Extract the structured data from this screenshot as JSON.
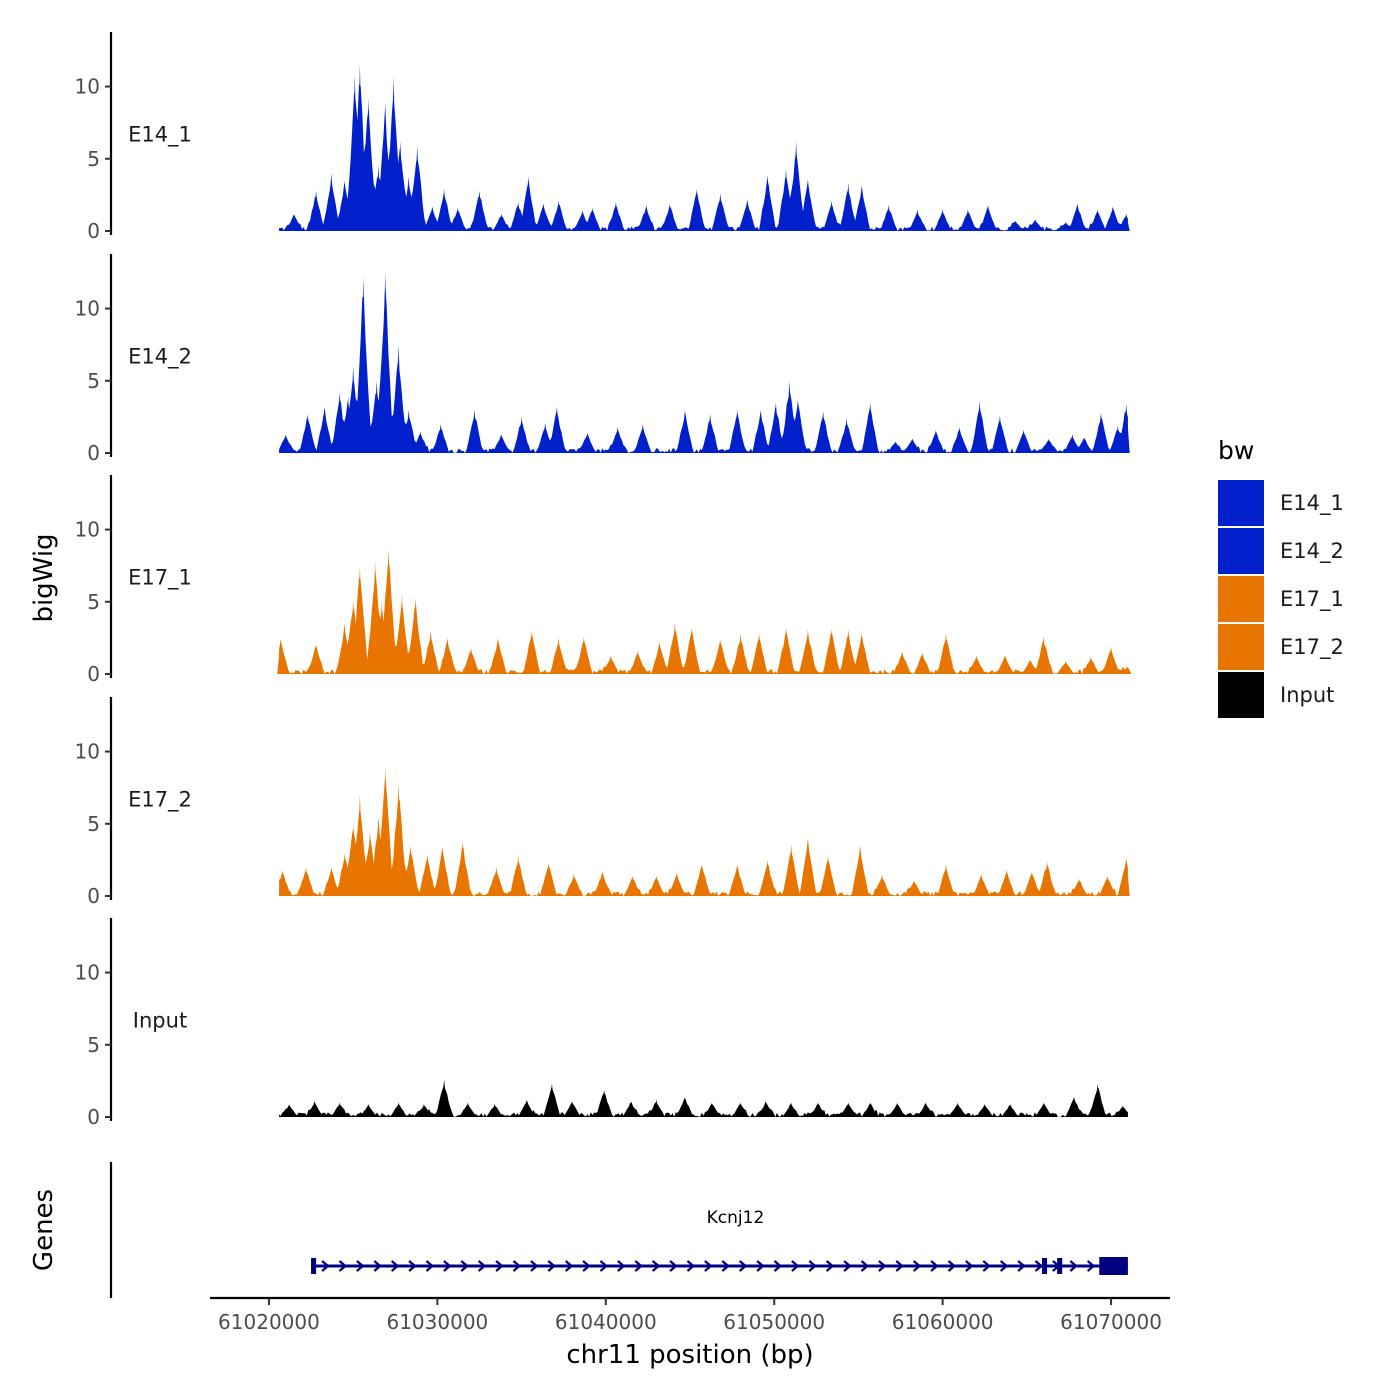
{
  "chart_data": {
    "type": "area",
    "title": "",
    "ylabel": "bigWig",
    "gene_panel_label": "Genes",
    "xlabel": "chr11 position (bp)",
    "xlim": [
      61016500,
      61073500
    ],
    "x_ticks": [
      61020000,
      61030000,
      61040000,
      61050000,
      61060000,
      61070000
    ],
    "x_tick_labels": [
      "61020000",
      "61030000",
      "61040000",
      "61050000",
      "61060000",
      "61070000"
    ],
    "ylim": [
      0,
      13.5
    ],
    "y_ticks": [
      0,
      5,
      10
    ],
    "y_tick_labels": [
      "0",
      "5",
      "10"
    ],
    "legend": {
      "title": "bw",
      "position": "right",
      "entries": [
        {
          "label": "E14_1",
          "color": "#0020CC"
        },
        {
          "label": "E14_2",
          "color": "#0020CC"
        },
        {
          "label": "E17_1",
          "color": "#E87500"
        },
        {
          "label": "E17_2",
          "color": "#E87500"
        },
        {
          "label": "Input",
          "color": "#000000"
        }
      ]
    },
    "series": [
      {
        "name": "E14_1",
        "color": "#0020CC",
        "x_start": 61020600,
        "x_end": 61071000,
        "peaks": [
          {
            "x": 61021500,
            "y": 1.2
          },
          {
            "x": 61022800,
            "y": 2.8
          },
          {
            "x": 61023700,
            "y": 4.0
          },
          {
            "x": 61024500,
            "y": 3.5
          },
          {
            "x": 61025100,
            "y": 10.8
          },
          {
            "x": 61025400,
            "y": 11.5
          },
          {
            "x": 61025900,
            "y": 9.2
          },
          {
            "x": 61026500,
            "y": 4.5
          },
          {
            "x": 61026900,
            "y": 8.8
          },
          {
            "x": 61027400,
            "y": 10.7
          },
          {
            "x": 61027800,
            "y": 6.2
          },
          {
            "x": 61028300,
            "y": 3.8
          },
          {
            "x": 61028800,
            "y": 5.9
          },
          {
            "x": 61029700,
            "y": 1.7
          },
          {
            "x": 61030400,
            "y": 2.9
          },
          {
            "x": 61031200,
            "y": 1.6
          },
          {
            "x": 61032500,
            "y": 2.8
          },
          {
            "x": 61033800,
            "y": 1.2
          },
          {
            "x": 61034800,
            "y": 2.0
          },
          {
            "x": 61035400,
            "y": 3.8
          },
          {
            "x": 61036300,
            "y": 1.9
          },
          {
            "x": 61037200,
            "y": 2.1
          },
          {
            "x": 61038600,
            "y": 1.4
          },
          {
            "x": 61039200,
            "y": 1.6
          },
          {
            "x": 61040600,
            "y": 2.0
          },
          {
            "x": 61042400,
            "y": 1.8
          },
          {
            "x": 61043800,
            "y": 1.9
          },
          {
            "x": 61045400,
            "y": 2.9
          },
          {
            "x": 61046800,
            "y": 2.6
          },
          {
            "x": 61048400,
            "y": 2.2
          },
          {
            "x": 61049600,
            "y": 3.9
          },
          {
            "x": 61050700,
            "y": 4.3
          },
          {
            "x": 61051300,
            "y": 6.2
          },
          {
            "x": 61052000,
            "y": 3.6
          },
          {
            "x": 61053400,
            "y": 2.1
          },
          {
            "x": 61054400,
            "y": 3.3
          },
          {
            "x": 61055200,
            "y": 3.2
          },
          {
            "x": 61056800,
            "y": 1.8
          },
          {
            "x": 61058500,
            "y": 1.5
          },
          {
            "x": 61060000,
            "y": 1.5
          },
          {
            "x": 61061500,
            "y": 1.5
          },
          {
            "x": 61062700,
            "y": 1.8
          },
          {
            "x": 61064300,
            "y": 0.7
          },
          {
            "x": 61065500,
            "y": 0.8
          },
          {
            "x": 61067300,
            "y": 0.6
          },
          {
            "x": 61068000,
            "y": 1.9
          },
          {
            "x": 61069200,
            "y": 1.5
          },
          {
            "x": 61070100,
            "y": 1.7
          },
          {
            "x": 61070900,
            "y": 1.2
          }
        ]
      },
      {
        "name": "E14_2",
        "color": "#0020CC",
        "x_start": 61020600,
        "x_end": 61071000,
        "peaks": [
          {
            "x": 61021000,
            "y": 1.3
          },
          {
            "x": 61022300,
            "y": 2.7
          },
          {
            "x": 61023300,
            "y": 3.2
          },
          {
            "x": 61024200,
            "y": 4.2
          },
          {
            "x": 61024700,
            "y": 3.9
          },
          {
            "x": 61025000,
            "y": 6.0
          },
          {
            "x": 61025600,
            "y": 12.2
          },
          {
            "x": 61026400,
            "y": 5.0
          },
          {
            "x": 61026900,
            "y": 12.5
          },
          {
            "x": 61027700,
            "y": 7.5
          },
          {
            "x": 61028300,
            "y": 3.0
          },
          {
            "x": 61029000,
            "y": 1.5
          },
          {
            "x": 61030200,
            "y": 2.0
          },
          {
            "x": 61032200,
            "y": 3.0
          },
          {
            "x": 61033800,
            "y": 1.3
          },
          {
            "x": 61035000,
            "y": 2.5
          },
          {
            "x": 61036400,
            "y": 2.1
          },
          {
            "x": 61037100,
            "y": 3.2
          },
          {
            "x": 61038900,
            "y": 1.4
          },
          {
            "x": 61040700,
            "y": 1.8
          },
          {
            "x": 61042200,
            "y": 2.0
          },
          {
            "x": 61044700,
            "y": 3.0
          },
          {
            "x": 61046200,
            "y": 2.7
          },
          {
            "x": 61047800,
            "y": 3.0
          },
          {
            "x": 61049200,
            "y": 3.0
          },
          {
            "x": 61050100,
            "y": 3.5
          },
          {
            "x": 61050900,
            "y": 5.0
          },
          {
            "x": 61051400,
            "y": 3.7
          },
          {
            "x": 61052900,
            "y": 2.9
          },
          {
            "x": 61054300,
            "y": 2.4
          },
          {
            "x": 61055700,
            "y": 3.5
          },
          {
            "x": 61057200,
            "y": 0.8
          },
          {
            "x": 61058200,
            "y": 1.0
          },
          {
            "x": 61059600,
            "y": 1.6
          },
          {
            "x": 61061000,
            "y": 1.8
          },
          {
            "x": 61062200,
            "y": 3.6
          },
          {
            "x": 61063400,
            "y": 2.6
          },
          {
            "x": 61064800,
            "y": 1.6
          },
          {
            "x": 61066300,
            "y": 1.0
          },
          {
            "x": 61067700,
            "y": 1.3
          },
          {
            "x": 61068400,
            "y": 1.1
          },
          {
            "x": 61069400,
            "y": 2.8
          },
          {
            "x": 61070400,
            "y": 1.9
          },
          {
            "x": 61070900,
            "y": 3.4
          }
        ]
      },
      {
        "name": "E17_1",
        "color": "#E87500",
        "x_start": 61020600,
        "x_end": 61071000,
        "peaks": [
          {
            "x": 61020700,
            "y": 2.4
          },
          {
            "x": 61022800,
            "y": 2.1
          },
          {
            "x": 61024500,
            "y": 3.5
          },
          {
            "x": 61025000,
            "y": 5.1
          },
          {
            "x": 61025400,
            "y": 7.5
          },
          {
            "x": 61026300,
            "y": 7.8
          },
          {
            "x": 61026700,
            "y": 5.0
          },
          {
            "x": 61027100,
            "y": 8.7
          },
          {
            "x": 61027900,
            "y": 5.5
          },
          {
            "x": 61028700,
            "y": 5.3
          },
          {
            "x": 61029600,
            "y": 3.0
          },
          {
            "x": 61030600,
            "y": 2.5
          },
          {
            "x": 61032000,
            "y": 1.8
          },
          {
            "x": 61033600,
            "y": 2.5
          },
          {
            "x": 61035600,
            "y": 3.0
          },
          {
            "x": 61037200,
            "y": 2.5
          },
          {
            "x": 61038700,
            "y": 2.6
          },
          {
            "x": 61040300,
            "y": 1.3
          },
          {
            "x": 61041900,
            "y": 1.6
          },
          {
            "x": 61043200,
            "y": 2.2
          },
          {
            "x": 61044100,
            "y": 3.5
          },
          {
            "x": 61045100,
            "y": 3.2
          },
          {
            "x": 61046800,
            "y": 2.4
          },
          {
            "x": 61048000,
            "y": 2.8
          },
          {
            "x": 61049100,
            "y": 2.8
          },
          {
            "x": 61050700,
            "y": 3.2
          },
          {
            "x": 61052000,
            "y": 3.1
          },
          {
            "x": 61053400,
            "y": 3.1
          },
          {
            "x": 61054400,
            "y": 3.1
          },
          {
            "x": 61055200,
            "y": 2.8
          },
          {
            "x": 61057600,
            "y": 1.6
          },
          {
            "x": 61058800,
            "y": 1.5
          },
          {
            "x": 61060200,
            "y": 2.8
          },
          {
            "x": 61062000,
            "y": 1.3
          },
          {
            "x": 61063700,
            "y": 1.3
          },
          {
            "x": 61065200,
            "y": 1.0
          },
          {
            "x": 61066000,
            "y": 2.6
          },
          {
            "x": 61067300,
            "y": 0.9
          },
          {
            "x": 61068800,
            "y": 1.2
          },
          {
            "x": 61070000,
            "y": 1.9
          },
          {
            "x": 61071000,
            "y": 0.5
          }
        ]
      },
      {
        "name": "E17_2",
        "color": "#E87500",
        "x_start": 61020600,
        "x_end": 61071000,
        "peaks": [
          {
            "x": 61020800,
            "y": 1.8
          },
          {
            "x": 61022200,
            "y": 2.0
          },
          {
            "x": 61023700,
            "y": 2.0
          },
          {
            "x": 61024500,
            "y": 3.0
          },
          {
            "x": 61025000,
            "y": 5.0
          },
          {
            "x": 61025400,
            "y": 7.0
          },
          {
            "x": 61026000,
            "y": 4.5
          },
          {
            "x": 61026500,
            "y": 5.5
          },
          {
            "x": 61026900,
            "y": 9.0
          },
          {
            "x": 61027700,
            "y": 7.8
          },
          {
            "x": 61028400,
            "y": 3.5
          },
          {
            "x": 61029400,
            "y": 2.9
          },
          {
            "x": 61030300,
            "y": 3.4
          },
          {
            "x": 61031500,
            "y": 3.8
          },
          {
            "x": 61033500,
            "y": 2.0
          },
          {
            "x": 61034800,
            "y": 2.8
          },
          {
            "x": 61036600,
            "y": 2.3
          },
          {
            "x": 61038100,
            "y": 1.5
          },
          {
            "x": 61039800,
            "y": 1.7
          },
          {
            "x": 61041600,
            "y": 1.4
          },
          {
            "x": 61043000,
            "y": 1.4
          },
          {
            "x": 61044200,
            "y": 1.6
          },
          {
            "x": 61045700,
            "y": 2.2
          },
          {
            "x": 61047800,
            "y": 2.2
          },
          {
            "x": 61049600,
            "y": 2.5
          },
          {
            "x": 61051000,
            "y": 3.6
          },
          {
            "x": 61052000,
            "y": 4.0
          },
          {
            "x": 61053200,
            "y": 2.8
          },
          {
            "x": 61055100,
            "y": 3.6
          },
          {
            "x": 61056400,
            "y": 1.5
          },
          {
            "x": 61058300,
            "y": 1.1
          },
          {
            "x": 61060200,
            "y": 2.2
          },
          {
            "x": 61062300,
            "y": 1.5
          },
          {
            "x": 61063800,
            "y": 1.8
          },
          {
            "x": 61065300,
            "y": 1.7
          },
          {
            "x": 61066200,
            "y": 2.4
          },
          {
            "x": 61068100,
            "y": 1.2
          },
          {
            "x": 61069800,
            "y": 1.4
          },
          {
            "x": 61070900,
            "y": 2.7
          }
        ]
      },
      {
        "name": "Input",
        "color": "#000000",
        "x_start": 61020600,
        "x_end": 61071000,
        "peaks": [
          {
            "x": 61021200,
            "y": 0.9
          },
          {
            "x": 61022700,
            "y": 1.1
          },
          {
            "x": 61024200,
            "y": 1.0
          },
          {
            "x": 61025900,
            "y": 0.9
          },
          {
            "x": 61027700,
            "y": 1.0
          },
          {
            "x": 61029200,
            "y": 0.9
          },
          {
            "x": 61030400,
            "y": 2.6
          },
          {
            "x": 61031800,
            "y": 1.0
          },
          {
            "x": 61033400,
            "y": 0.9
          },
          {
            "x": 61035300,
            "y": 1.2
          },
          {
            "x": 61036800,
            "y": 2.3
          },
          {
            "x": 61038000,
            "y": 1.1
          },
          {
            "x": 61039900,
            "y": 1.9
          },
          {
            "x": 61041500,
            "y": 1.1
          },
          {
            "x": 61043000,
            "y": 1.2
          },
          {
            "x": 61044700,
            "y": 1.4
          },
          {
            "x": 61046300,
            "y": 1.0
          },
          {
            "x": 61048000,
            "y": 1.0
          },
          {
            "x": 61049500,
            "y": 1.1
          },
          {
            "x": 61051000,
            "y": 1.0
          },
          {
            "x": 61052600,
            "y": 1.0
          },
          {
            "x": 61054400,
            "y": 1.0
          },
          {
            "x": 61055700,
            "y": 1.0
          },
          {
            "x": 61057300,
            "y": 1.0
          },
          {
            "x": 61059000,
            "y": 1.0
          },
          {
            "x": 61060900,
            "y": 1.0
          },
          {
            "x": 61062500,
            "y": 0.9
          },
          {
            "x": 61064000,
            "y": 0.9
          },
          {
            "x": 61066000,
            "y": 1.0
          },
          {
            "x": 61067800,
            "y": 1.4
          },
          {
            "x": 61069200,
            "y": 2.3
          },
          {
            "x": 61070700,
            "y": 0.8
          }
        ]
      }
    ],
    "genes": [
      {
        "name": "Kcnj12",
        "strand": "+",
        "color": "#000080",
        "start": 61022500,
        "end": 61071000,
        "exons": [
          [
            61022500,
            61022800
          ],
          [
            61065900,
            61066200
          ],
          [
            61066800,
            61067100
          ],
          [
            61069300,
            61071000
          ]
        ]
      }
    ]
  }
}
